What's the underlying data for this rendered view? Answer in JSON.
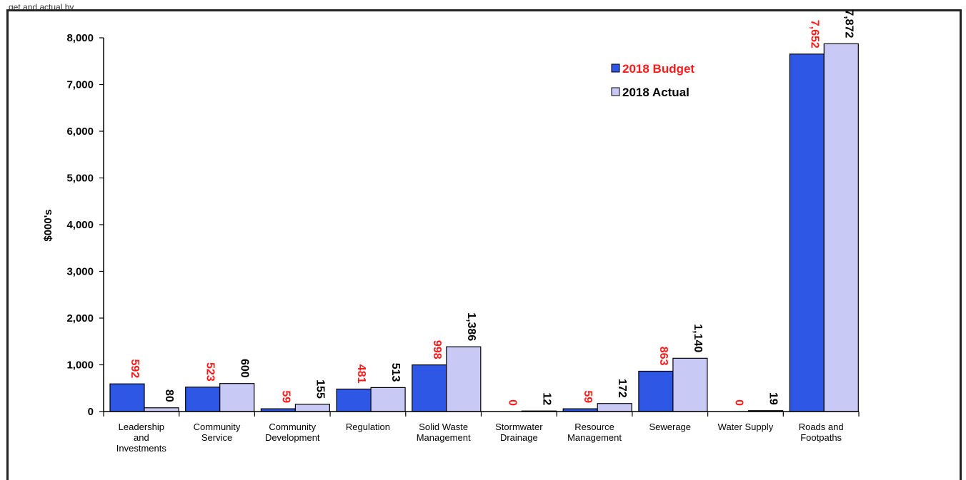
{
  "page": {
    "caption_fragment": "get and actual by"
  },
  "chart_data": {
    "type": "bar",
    "title": "",
    "xlabel": "",
    "ylabel": "$000's",
    "ylim": [
      0,
      8000
    ],
    "yticks": [
      "0",
      "1,000",
      "2,000",
      "3,000",
      "4,000",
      "5,000",
      "6,000",
      "7,000",
      "8,000"
    ],
    "ytick_values": [
      0,
      1000,
      2000,
      3000,
      4000,
      5000,
      6000,
      7000,
      8000
    ],
    "categories": [
      [
        "Leadership",
        "and",
        "Investments"
      ],
      [
        "Community",
        "Service"
      ],
      [
        "Community",
        "Development"
      ],
      [
        "Regulation"
      ],
      [
        "Solid Waste",
        "Management"
      ],
      [
        "Stormwater",
        "Drainage"
      ],
      [
        "Resource",
        "Management"
      ],
      [
        "Sewerage"
      ],
      [
        "Water Supply"
      ],
      [
        "Roads and",
        "Footpaths"
      ]
    ],
    "series": [
      {
        "name": "2018 Budget",
        "values": [
          592,
          523,
          59,
          481,
          998,
          0,
          59,
          863,
          0,
          7652
        ],
        "labels": [
          "592",
          "523",
          "59",
          "481",
          "998",
          "0",
          "59",
          "863",
          "0",
          "7,652"
        ],
        "color": "#2E57E6",
        "label_color": "#FF1A1A"
      },
      {
        "name": "2018 Actual",
        "values": [
          80,
          600,
          155,
          513,
          1386,
          12,
          172,
          1140,
          19,
          7872
        ],
        "labels": [
          "80",
          "600",
          "155",
          "513",
          "1,386",
          "12",
          "172",
          "1,140",
          "19",
          "7,872"
        ],
        "color": "#C9C9F5",
        "label_color": "#000000"
      }
    ],
    "legend": {
      "position": "top-right",
      "items": [
        {
          "label": "2018 Budget",
          "color": "#2E57E6",
          "text_color": "#FF1A1A"
        },
        {
          "label": "2018 Actual",
          "color": "#C9C9F5",
          "text_color": "#000000"
        }
      ]
    },
    "grid": false
  }
}
